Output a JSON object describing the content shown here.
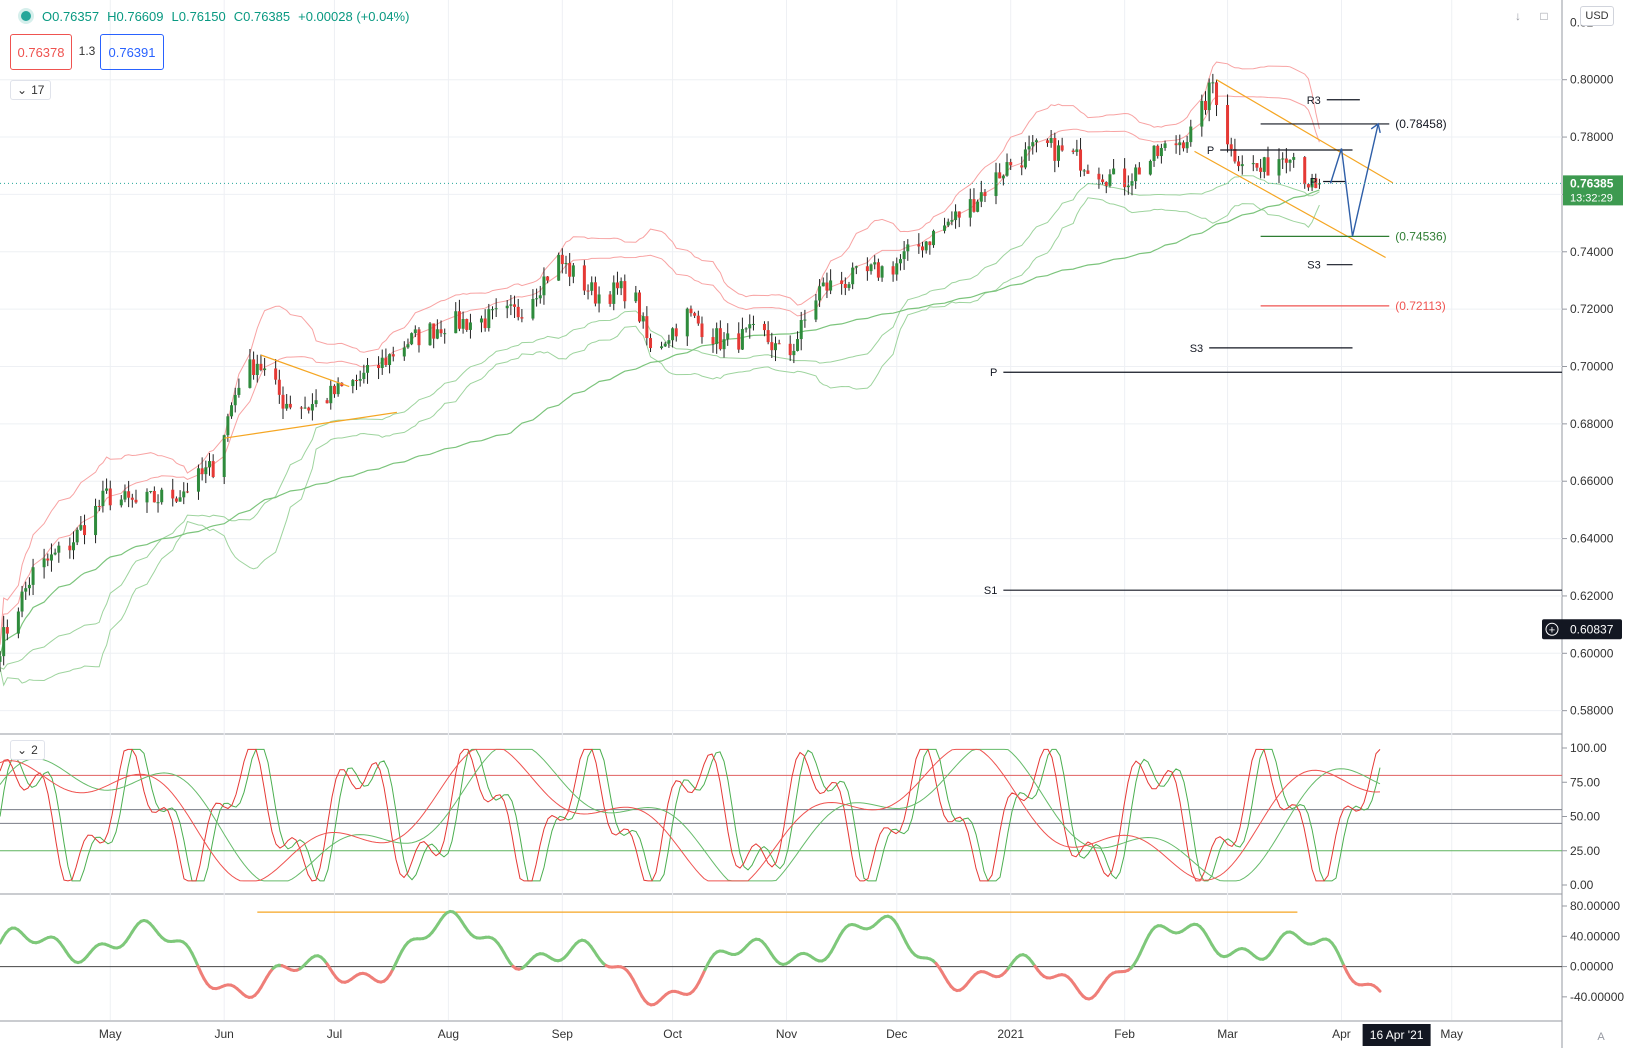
{
  "header": {
    "open": "O0.76357",
    "high": "H0.76609",
    "low": "L0.76150",
    "close": "C0.76385",
    "change": "+0.00028 (+0.04%)"
  },
  "quote": {
    "bid": "0.76378",
    "spread": "1.3",
    "ask": "0.76391"
  },
  "pane_labels": {
    "main": "17",
    "osc": "2"
  },
  "currency": "USD",
  "price_axis": {
    "top_cut": "0.82",
    "ticks": [
      "0.80000",
      "0.78000",
      "0.76000",
      "0.74000",
      "0.72000",
      "0.70000",
      "0.68000",
      "0.66000",
      "0.64000",
      "0.62000",
      "0.60000",
      "0.58000"
    ],
    "last_price": "0.76385",
    "countdown": "13:32:29",
    "crosshair_price": "0.60837"
  },
  "osc_axis": {
    "ticks": [
      "100.00",
      "75.00",
      "50.00",
      "25.00",
      "0.00"
    ]
  },
  "mom_axis": {
    "ticks": [
      "80.00000",
      "40.00000",
      "0.00000",
      "-40.00000"
    ]
  },
  "time_axis": {
    "labels": [
      "May",
      "Jun",
      "Jul",
      "Aug",
      "Sep",
      "Oct",
      "Nov",
      "Dec",
      "2021",
      "Feb",
      "Mar",
      "Apr",
      "May"
    ],
    "highlight": "16 Apr '21"
  },
  "pivots": {
    "R3": "R3",
    "P_recent": "P",
    "P_small": "P",
    "S3a": "S3",
    "S3b": "S3",
    "P_long": "P",
    "S1": "S1",
    "target_up": "(0.78458)",
    "target_mid": "(0.74536)",
    "target_low": "(0.72113)"
  },
  "colors": {
    "up": "#26a69a",
    "down": "#ef5350",
    "band_red": "#f8a3a3",
    "band_green": "#9ed49e",
    "trend_orange": "#f5a623",
    "forecast_blue": "#2f5fa8",
    "grid": "#eef0f4",
    "axis_text": "#333333",
    "mom_green": "#7ec87a",
    "mom_red": "#ef7e78",
    "dark_label": "#131722"
  },
  "chart_data": {
    "type": "candlestick",
    "symbol_ohlc": {
      "open": 0.76357,
      "high": 0.76609,
      "low": 0.7615,
      "close": 0.76385
    },
    "price_range": [
      0.575,
      0.825
    ],
    "date_range": [
      "2020-04-01",
      "2021-05-31"
    ],
    "price_path": [
      [
        "2020-04-01",
        0.603
      ],
      [
        "2020-04-10",
        0.628
      ],
      [
        "2020-04-20",
        0.638
      ],
      [
        "2020-04-30",
        0.655
      ],
      [
        "2020-05-08",
        0.652
      ],
      [
        "2020-05-20",
        0.656
      ],
      [
        "2020-05-29",
        0.665
      ],
      [
        "2020-06-05",
        0.695
      ],
      [
        "2020-06-10",
        0.702
      ],
      [
        "2020-06-17",
        0.688
      ],
      [
        "2020-06-24",
        0.686
      ],
      [
        "2020-06-30",
        0.69
      ],
      [
        "2020-07-10",
        0.697
      ],
      [
        "2020-07-20",
        0.708
      ],
      [
        "2020-07-31",
        0.715
      ],
      [
        "2020-08-10",
        0.716
      ],
      [
        "2020-08-20",
        0.719
      ],
      [
        "2020-08-31",
        0.737
      ],
      [
        "2020-09-10",
        0.725
      ],
      [
        "2020-09-20",
        0.727
      ],
      [
        "2020-09-25",
        0.705
      ],
      [
        "2020-10-05",
        0.718
      ],
      [
        "2020-10-15",
        0.708
      ],
      [
        "2020-10-25",
        0.712
      ],
      [
        "2020-11-01",
        0.702
      ],
      [
        "2020-11-10",
        0.727
      ],
      [
        "2020-11-20",
        0.731
      ],
      [
        "2020-11-30",
        0.735
      ],
      [
        "2020-12-10",
        0.745
      ],
      [
        "2020-12-20",
        0.755
      ],
      [
        "2020-12-31",
        0.77
      ],
      [
        "2021-01-10",
        0.777
      ],
      [
        "2021-01-20",
        0.772
      ],
      [
        "2021-01-31",
        0.764
      ],
      [
        "2021-02-10",
        0.774
      ],
      [
        "2021-02-20",
        0.782
      ],
      [
        "2021-02-25",
        0.799
      ],
      [
        "2021-03-02",
        0.775
      ],
      [
        "2021-03-10",
        0.768
      ],
      [
        "2021-03-18",
        0.776
      ],
      [
        "2021-03-25",
        0.76
      ],
      [
        "2021-03-29",
        0.7638
      ]
    ],
    "forecast_path": [
      [
        "2021-03-29",
        0.7638
      ],
      [
        "2021-04-01",
        0.776
      ],
      [
        "2021-04-04",
        0.7454
      ],
      [
        "2021-04-11",
        0.7846
      ]
    ],
    "horizontal_levels": [
      {
        "label": "R3",
        "price": 0.793
      },
      {
        "label": "(0.78458)",
        "price": 0.78458
      },
      {
        "label": "P",
        "price": 0.7755
      },
      {
        "label": "P",
        "price": 0.7645
      },
      {
        "label": "(0.74536)",
        "price": 0.74536
      },
      {
        "label": "S3",
        "price": 0.7355
      },
      {
        "label": "(0.72113)",
        "price": 0.72113
      },
      {
        "label": "S3",
        "price": 0.7065
      },
      {
        "label": "P",
        "price": 0.698
      },
      {
        "label": "S1",
        "price": 0.622
      }
    ],
    "oscillator": {
      "range": [
        0,
        100
      ],
      "levels": [
        80,
        55,
        45,
        25
      ]
    },
    "momentum": {
      "range": [
        -60,
        100
      ],
      "zero": 0
    }
  }
}
